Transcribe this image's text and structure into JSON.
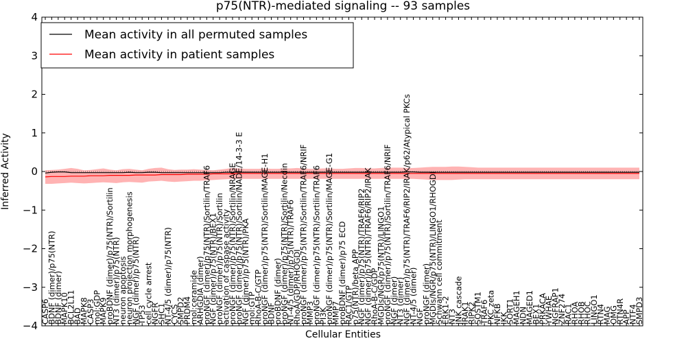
{
  "chart_data": {
    "type": "line",
    "title": "p75(NTR)-mediated signaling -- 93 samples",
    "xlabel": "Cellular Entities",
    "ylabel": "Inferred Activity",
    "ylim": [
      -4,
      4
    ],
    "yticks": [
      "−4",
      "−3",
      "−2",
      "−1",
      "0",
      "1",
      "2",
      "3",
      "4"
    ],
    "legend_position": "top-left",
    "legend": [
      {
        "label": "Mean activity in all permuted samples",
        "color": "#000000"
      },
      {
        "label": "Mean activity in patient samples",
        "color": "#ff0000"
      }
    ],
    "categories": [
      "CASP6",
      "BDNF (dimer)/p75(NTR)",
      "BDNF (dimer)",
      "MAPK10",
      "BCL2L11",
      "BAD",
      "MAPK8",
      "CASP3",
      "mol:GDP",
      "MAPK9",
      "proBDNF (dimer)/p75(NTR)/Sortilin",
      "NT3 (dimer)/p75(NTR)",
      "neuron apoptosis",
      "neuron projection morphogenesis",
      "NGF (dimer)/p75(NTR)",
      "TP53",
      "cell cycle arrest",
      "NGFR",
      "SHC1",
      "NT-4/5 (dimer)/p75(NTR)",
      "CYCS",
      "SMPD2",
      "PRDM4",
      "mol:ceramide",
      "ARHGDIA (dimer)",
      "proNGF (dimer)/p75(NTR)/Sortilin/TRAF6",
      "NGF (dimer)/p75(NTR)/BEX1",
      "proNGF (dimer)/p75(NTR)/Sortilin",
      "activation of caspase activity",
      "proNGF (dimer)/p75(NTR)/Sortilin/NRAGE",
      "proNGF (dimer)/p75(NTR)/Sortilin/NADE/14-3-3 E",
      "NGF (dimer)/p75(NTR)/PKA",
      "mol:GTP",
      "RhoA-B-C/GTP",
      "proNGF (dimer)/p75(NTR)/Sortilin/MAGE-H1",
      "BDNF",
      "proBDNF (dimer)",
      "proNGF (dimer)/p75(NTR)/Sortilin/Necdin",
      "NT-4/5 (dimer)/p75(NTR)/TRAF6",
      "RhoA/GDP/RHOGDI",
      "proNGF (dimer)/p75(NTR)/Sortilin/TRAF6/NRIF",
      "MMP3",
      "proNGF (dimer)/p75(NTR)/Sortilin/TRAF6",
      "PI3K",
      "proNGF (dimer)/p75(NTR)/Sortilin/MAGE-G1",
      "MMP7",
      "proBDNF (dimer)/p75 ECD",
      "RAC1/GTP",
      "p75(NTR)/beta APP",
      "NGF (dimer)/p75(NTR)/TRAF6/RIP2",
      "NGF (dimer)/p75(NTR)/TRAF6/RIP2/IRAK",
      "RhoA-B-C/GDP",
      "MGDIs/NGR/p75(NTR)/LINGO1",
      "proNGF (dimer)/p75(NTR)/Sortilin/TRAF6/NRIF",
      "NGF (dimer)",
      "NT3 (dimer)",
      "NGF (dimer)/p75(NTR)/TRAF6/RIP2/IRAK/p62/Atypical PKCs",
      "NT-4/5 (dimer)",
      "NGF",
      "proNGF (dimer)",
      "MGDIs/NGR/p75(NTR)/LINGO1/RHOGDI",
      "Schwann cell commitment",
      "ERK1-2",
      "NT3",
      "JNK cascade",
      "IRAK1",
      "RIPK2",
      "SQSTM1",
      "TRAF6",
      "PKC zeta",
      "NFKB",
      "IKK",
      "SORT1",
      "MAGEH1",
      "NDN",
      "MAGED1",
      "BEX1",
      "PRKACA",
      "YWHAE",
      "NGFRAP1",
      "ZNF274",
      "RAC1",
      "RHOA",
      "RHOB",
      "RHOC",
      "LINGO1",
      "RTN4",
      "MAG",
      "OMG",
      "RTN4R",
      "APP",
      "NTF4",
      "SMPD3"
    ],
    "series": [
      {
        "name": "Mean activity in all permuted samples",
        "color": "#000000",
        "values": [
          -0.04,
          -0.02,
          -0.01,
          -0.01,
          -0.03,
          -0.03,
          -0.03,
          -0.03,
          -0.03,
          -0.03,
          -0.03,
          -0.03,
          -0.03,
          -0.02,
          -0.03,
          -0.03,
          -0.02,
          -0.02,
          -0.03,
          -0.03,
          -0.03,
          -0.03,
          -0.03,
          -0.03,
          -0.03,
          -0.03,
          -0.03,
          -0.03,
          -0.02,
          -0.02,
          -0.02,
          -0.02,
          -0.02,
          -0.02,
          -0.02,
          -0.02,
          -0.02,
          -0.02,
          -0.02,
          -0.02,
          -0.02,
          -0.02,
          -0.02,
          -0.02,
          -0.02,
          -0.02,
          -0.02,
          -0.02,
          -0.02,
          -0.02,
          -0.02,
          -0.02,
          -0.02,
          -0.02,
          -0.02,
          -0.02,
          -0.01,
          -0.01,
          -0.02,
          -0.02,
          -0.02,
          -0.02,
          -0.02,
          -0.02,
          -0.02,
          -0.02,
          -0.02,
          -0.02,
          -0.02,
          -0.02,
          -0.02,
          -0.02,
          -0.02,
          -0.02,
          -0.02,
          -0.02,
          -0.02,
          -0.02,
          -0.02,
          -0.02,
          -0.02,
          -0.02,
          -0.02,
          -0.02,
          -0.02,
          -0.02,
          -0.02,
          -0.02,
          -0.02,
          -0.02,
          -0.02,
          -0.02,
          -0.02
        ]
      },
      {
        "name": "Mean activity in patient samples",
        "color": "#ff0000",
        "values": [
          -0.14,
          -0.13,
          -0.13,
          -0.13,
          -0.12,
          -0.12,
          -0.12,
          -0.11,
          -0.11,
          -0.11,
          -0.1,
          -0.1,
          -0.1,
          -0.1,
          -0.09,
          -0.09,
          -0.09,
          -0.09,
          -0.08,
          -0.08,
          -0.08,
          -0.08,
          -0.07,
          -0.07,
          -0.07,
          -0.07,
          -0.06,
          -0.06,
          -0.06,
          -0.06,
          -0.05,
          -0.05,
          -0.05,
          -0.05,
          -0.05,
          -0.05,
          -0.05,
          -0.05,
          -0.05,
          -0.05,
          -0.05,
          -0.05,
          -0.05,
          -0.05,
          -0.05,
          -0.05,
          -0.05,
          -0.05,
          -0.05,
          -0.05,
          -0.05,
          -0.05,
          -0.05,
          -0.05,
          -0.05,
          -0.05,
          -0.05,
          -0.05,
          -0.05,
          -0.05,
          -0.05,
          -0.05,
          -0.05,
          -0.05,
          -0.05,
          -0.05,
          -0.05,
          -0.05,
          -0.05,
          -0.05,
          -0.05,
          -0.05,
          -0.05,
          -0.05,
          -0.05,
          -0.05,
          -0.05,
          -0.05,
          -0.05,
          -0.05,
          -0.05,
          -0.05,
          -0.05,
          -0.05,
          -0.05,
          -0.05,
          -0.05,
          -0.05,
          -0.05,
          -0.05,
          -0.05,
          -0.05,
          -0.05
        ]
      }
    ],
    "band": {
      "name": "patient samples spread",
      "color": "#ff8080",
      "upper": [
        0.03,
        0.04,
        0.05,
        0.07,
        0.09,
        0.07,
        0.03,
        0.04,
        0.06,
        0.08,
        0.05,
        0.03,
        0.06,
        0.07,
        0.05,
        0.03,
        0.07,
        0.09,
        0.1,
        0.06,
        0.04,
        0.05,
        0.05,
        0.06,
        0.05,
        0.04,
        0.03,
        0.05,
        0.07,
        0.09,
        0.08,
        0.07,
        0.07,
        0.07,
        0.08,
        0.07,
        0.07,
        0.08,
        0.08,
        0.09,
        0.08,
        0.07,
        0.07,
        0.08,
        0.08,
        0.07,
        0.07,
        0.08,
        0.09,
        0.09,
        0.08,
        0.08,
        0.09,
        0.1,
        0.1,
        0.1,
        0.09,
        0.09,
        0.1,
        0.11,
        0.12,
        0.12,
        0.12,
        0.13,
        0.13,
        0.12,
        0.11,
        0.1,
        0.1,
        0.1,
        0.1,
        0.1,
        0.1,
        0.1,
        0.1,
        0.1,
        0.1,
        0.1,
        0.1,
        0.1,
        0.1,
        0.1,
        0.1,
        0.1,
        0.1,
        0.1,
        0.1,
        0.1,
        0.1,
        0.1,
        0.1,
        0.1,
        0.1
      ],
      "lower": [
        -0.32,
        -0.32,
        -0.31,
        -0.3,
        -0.29,
        -0.3,
        -0.31,
        -0.3,
        -0.29,
        -0.28,
        -0.29,
        -0.3,
        -0.28,
        -0.27,
        -0.28,
        -0.29,
        -0.26,
        -0.25,
        -0.24,
        -0.26,
        -0.27,
        -0.26,
        -0.25,
        -0.24,
        -0.24,
        -0.23,
        -0.22,
        -0.21,
        -0.2,
        -0.19,
        -0.19,
        -0.19,
        -0.19,
        -0.19,
        -0.19,
        -0.19,
        -0.19,
        -0.19,
        -0.19,
        -0.19,
        -0.19,
        -0.19,
        -0.19,
        -0.19,
        -0.19,
        -0.19,
        -0.19,
        -0.19,
        -0.19,
        -0.19,
        -0.19,
        -0.19,
        -0.19,
        -0.19,
        -0.19,
        -0.19,
        -0.19,
        -0.19,
        -0.2,
        -0.21,
        -0.22,
        -0.22,
        -0.22,
        -0.22,
        -0.21,
        -0.2,
        -0.2,
        -0.2,
        -0.2,
        -0.2,
        -0.2,
        -0.2,
        -0.2,
        -0.2,
        -0.2,
        -0.2,
        -0.2,
        -0.2,
        -0.2,
        -0.2,
        -0.2,
        -0.2,
        -0.2,
        -0.2,
        -0.2,
        -0.2,
        -0.2,
        -0.2,
        -0.2,
        -0.2,
        -0.2,
        -0.2,
        -0.2
      ]
    }
  }
}
